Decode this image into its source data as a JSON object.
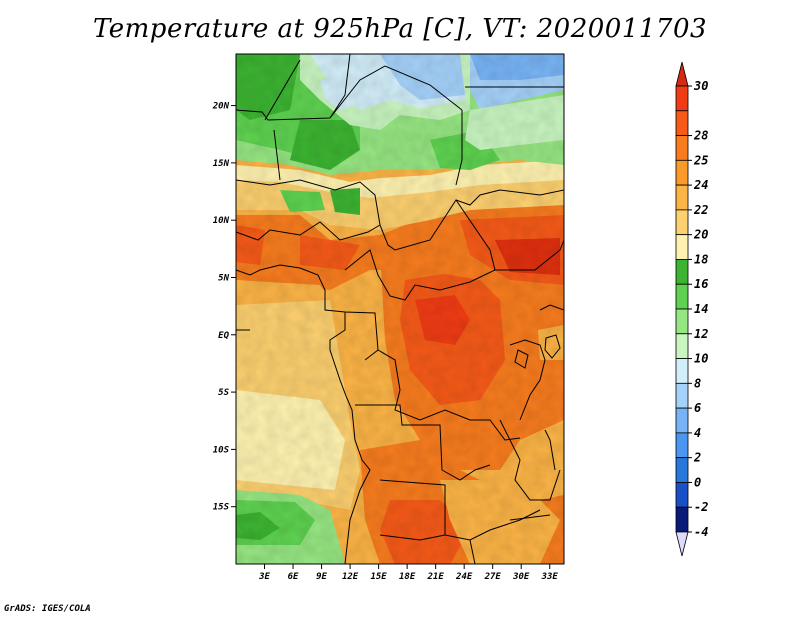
{
  "title": "Temperature at 925hPa [C], VT: 2020011703",
  "credit": "GrADS: IGES/COLA",
  "map": {
    "lat_ticks": [
      {
        "label": "20N",
        "value": 20
      },
      {
        "label": "15N",
        "value": 15
      },
      {
        "label": "10N",
        "value": 10
      },
      {
        "label": "5N",
        "value": 5
      },
      {
        "label": "EQ",
        "value": 0
      },
      {
        "label": "5S",
        "value": -5
      },
      {
        "label": "10S",
        "value": -10
      },
      {
        "label": "15S",
        "value": -15
      }
    ],
    "lon_ticks": [
      {
        "label": "3E",
        "value": 3
      },
      {
        "label": "6E",
        "value": 6
      },
      {
        "label": "9E",
        "value": 9
      },
      {
        "label": "12E",
        "value": 12
      },
      {
        "label": "15E",
        "value": 15
      },
      {
        "label": "18E",
        "value": 18
      },
      {
        "label": "21E",
        "value": 21
      },
      {
        "label": "24E",
        "value": 24
      },
      {
        "label": "27E",
        "value": 27
      },
      {
        "label": "30E",
        "value": 30
      },
      {
        "label": "33E",
        "value": 33
      }
    ]
  },
  "colorbar": {
    "levels": [
      {
        "label": "30",
        "color": "#f03c14"
      },
      {
        "label": "28",
        "color": "#f55a18"
      },
      {
        "label": "25",
        "color": "#f87c1e"
      },
      {
        "label": "24",
        "color": "#fa9a28"
      },
      {
        "label": "22",
        "color": "#fcb446"
      },
      {
        "label": "20",
        "color": "#fdd070"
      },
      {
        "label": "18",
        "color": "#fff2b0"
      },
      {
        "label": "16",
        "color": "#3cb432"
      },
      {
        "label": "14",
        "color": "#5ed250"
      },
      {
        "label": "12",
        "color": "#96e682"
      },
      {
        "label": "10",
        "color": "#c8f5c0"
      },
      {
        "label": "8",
        "color": "#d2eefa"
      },
      {
        "label": "6",
        "color": "#a5d2fa"
      },
      {
        "label": "4",
        "color": "#78b4f5"
      },
      {
        "label": "2",
        "color": "#4b96f0"
      },
      {
        "label": "0",
        "color": "#2878dc"
      },
      {
        "label": "-2",
        "color": "#1950c8"
      },
      {
        "label": "-4",
        "color": "#0f32a0"
      }
    ],
    "top_triangle_color": "#d72814",
    "bottom_triangle_color": "#dcdcfa",
    "bottom_band_color": "#0a1a78"
  }
}
